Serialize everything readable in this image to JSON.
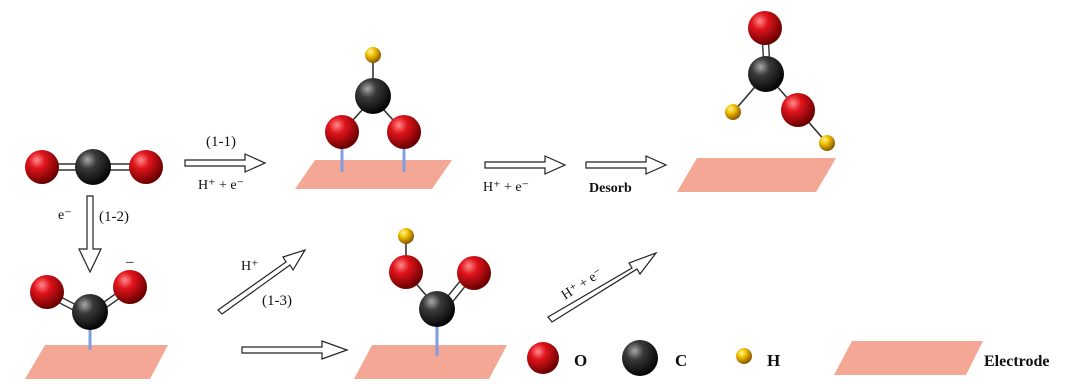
{
  "labels": {
    "step_1_1": "(1-1)",
    "step_1_2": "(1-2)",
    "step_1_3": "(1-3)",
    "electron": "e⁻",
    "anion_charge": "–",
    "proton": "H⁺",
    "proton_electron": "H⁺ + e⁻",
    "desorb": "Desorb"
  },
  "legend": {
    "oxygen": "O",
    "carbon": "C",
    "hydrogen": "H",
    "electrode": "Electrode"
  },
  "colors": {
    "oxygen": "#d0101a",
    "carbon": "#222222",
    "hydrogen": "#f2c000",
    "electrode": "#f4a795",
    "bond_to_surface": "#7f9fe0"
  }
}
